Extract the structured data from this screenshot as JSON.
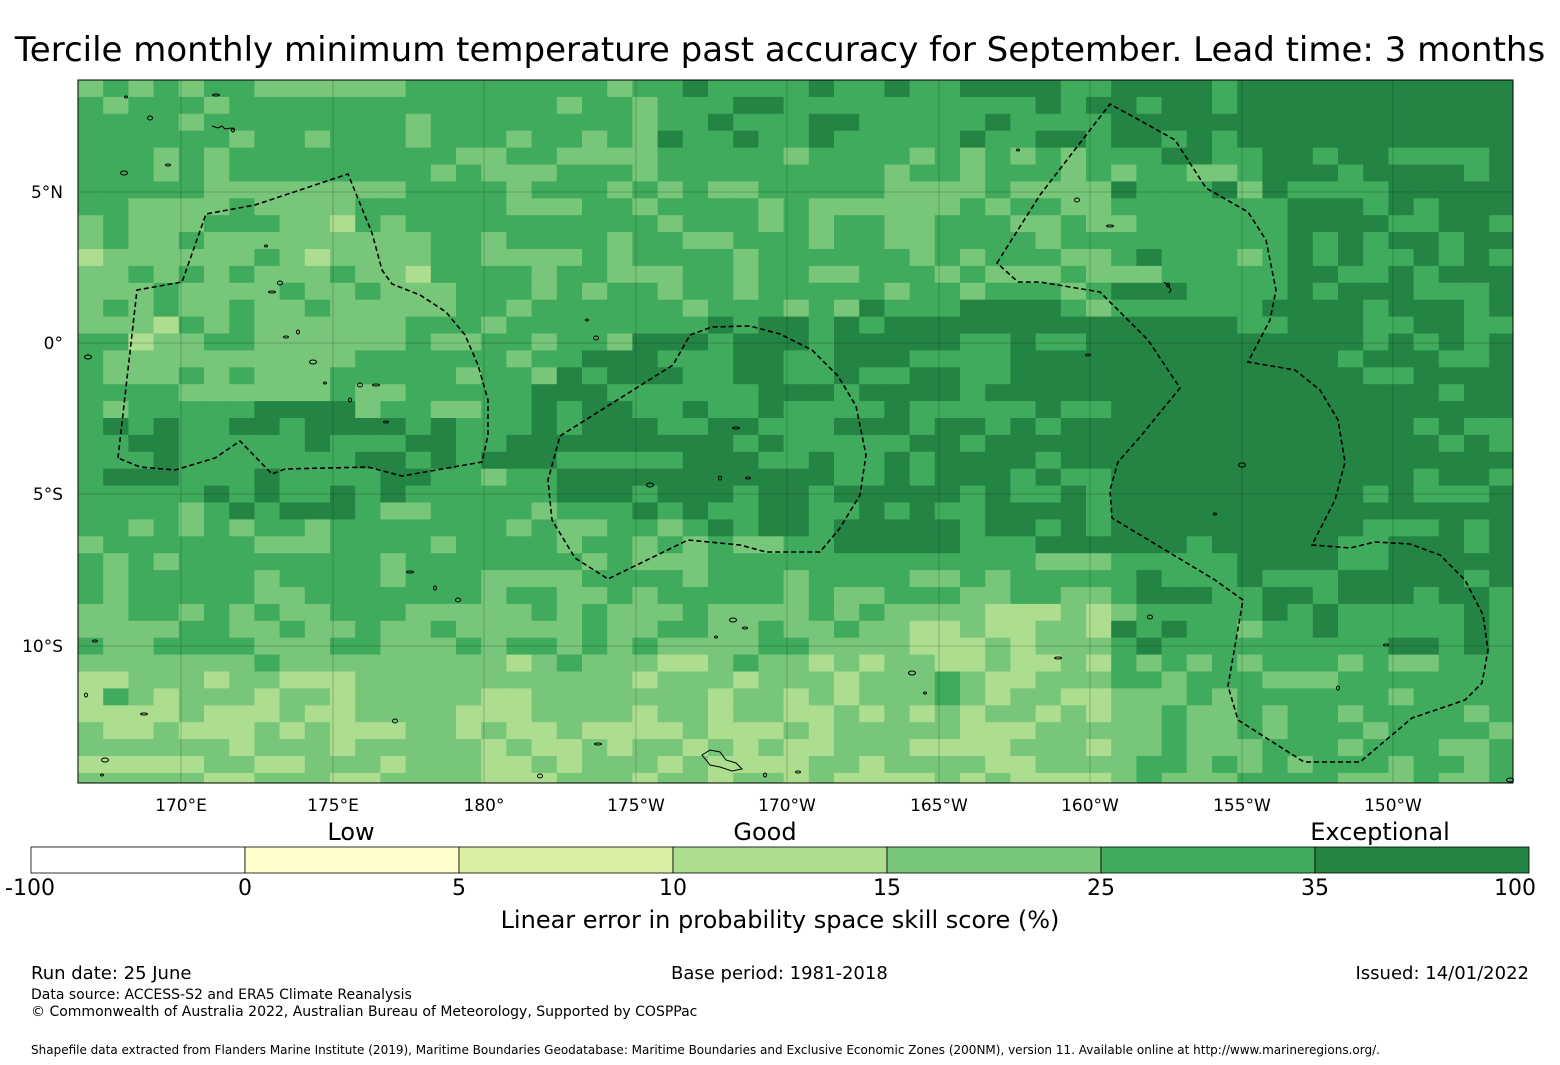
{
  "title": "Tercile monthly minimum temperature past accuracy for September. Lead time: 3 months",
  "map": {
    "lon_labels": [
      "170°E",
      "175°E",
      "180°",
      "175°W",
      "170°W",
      "165°W",
      "160°W",
      "155°W",
      "150°W"
    ],
    "lat_labels": [
      "5°N",
      "0°",
      "5°S",
      "10°S"
    ]
  },
  "legend": {
    "categories": [
      "Low",
      "Good",
      "Exceptional"
    ],
    "ticks": [
      "-100",
      "0",
      "5",
      "10",
      "15",
      "25",
      "35",
      "100"
    ],
    "colors": [
      "#ffffff",
      "#ffffcc",
      "#d9f0a3",
      "#addd8e",
      "#78c679",
      "#41ab5d",
      "#238443"
    ],
    "label": "Linear error in probability space skill score (%)"
  },
  "footer": {
    "run_date": "Run date: 25 June",
    "base_period": "Base period: 1981-2018",
    "issued": "Issued: 14/01/2022",
    "data_source": "Data source: ACCESS-S2 and ERA5 Climate Reanalysis",
    "copyright": "© Commonwealth of Australia 2022, Australian Bureau of Meteorology, Supported by COSPPac",
    "shapefile": "Shapefile data extracted from Flanders Marine Institute (2019), Maritime Boundaries Geodatabase: Maritime Boundaries and Exclusive Economic Zones (200NM), version 11. Available online at http://www.marineregions.org/."
  }
}
